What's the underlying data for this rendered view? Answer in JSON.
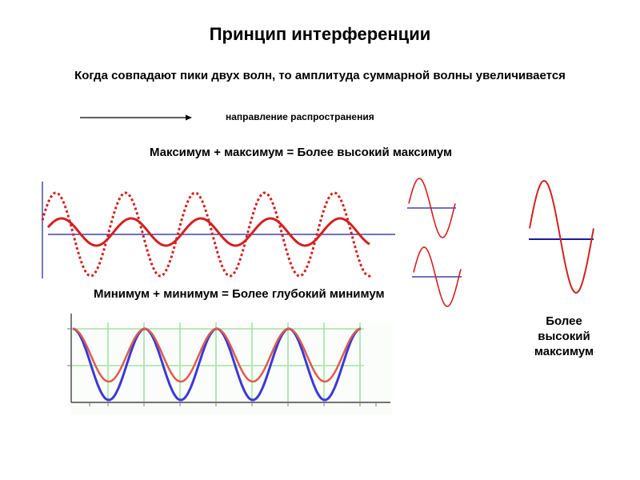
{
  "title": "Принцип интерференции",
  "subtitle": "Когда совпадают пики двух волн, то амплитуда суммарной волны увеличивается",
  "direction_label": "направление распространения",
  "max_caption": "Максимум + максимум = Более высокий  максимум",
  "min_caption": "Минимум + минимум = Более глубокий  минимум",
  "higher_max_line1": "Более",
  "higher_max_line2": "высокий",
  "higher_max_line3": "максимум",
  "colors": {
    "wave": "#d42020",
    "axis": "#1a1aa0",
    "grid": "#8ee08e",
    "blue_wave": "#3a3ad8",
    "red_wave": "#e05a4a",
    "dark": "#000000"
  }
}
